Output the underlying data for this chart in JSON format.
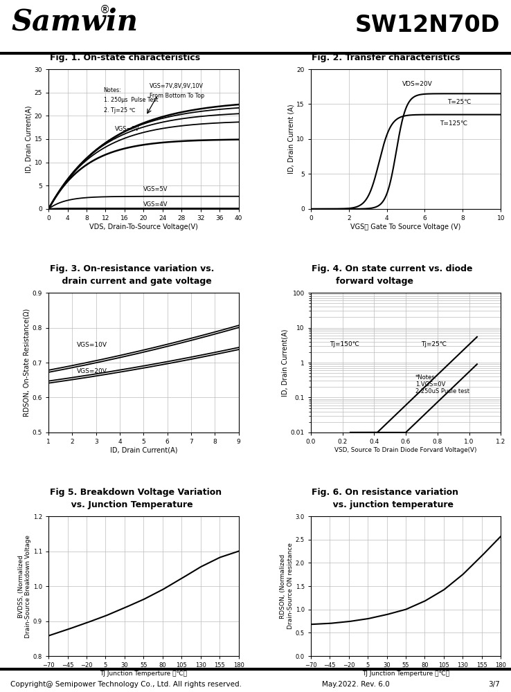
{
  "title_left": "Samwin",
  "title_right": "SW12N70D",
  "footer_left": "Copyright@ Semipower Technology Co., Ltd. All rights reserved.",
  "footer_mid": "May.2022. Rev. 6.0",
  "footer_right": "3/7",
  "fig1_title": "Fig. 1. On-state characteristics",
  "fig1_xlabel": "VDS, Drain-To-Source Voltage(V)",
  "fig1_ylabel": "ID, Drain Current(A)",
  "fig1_xlim": [
    0,
    40
  ],
  "fig1_ylim": [
    0,
    30
  ],
  "fig1_xticks": [
    0,
    4,
    8,
    12,
    16,
    20,
    24,
    28,
    32,
    36,
    40
  ],
  "fig1_yticks": [
    0,
    5,
    10,
    15,
    20,
    25,
    30
  ],
  "fig2_title": "Fig. 2. Transfer characteristics",
  "fig2_xlabel": "VGS， Gate To Source Voltage (V)",
  "fig2_ylabel": "ID, Drain Current (A)",
  "fig2_xlim": [
    0,
    10
  ],
  "fig2_ylim": [
    0,
    20
  ],
  "fig2_xticks": [
    0,
    2,
    4,
    6,
    8,
    10
  ],
  "fig2_yticks": [
    0,
    5,
    10,
    15,
    20
  ],
  "fig3_title_l1": "Fig. 3. On-resistance variation vs.",
  "fig3_title_l2": "    drain current and gate voltage",
  "fig3_xlabel": "ID, Drain Current(A)",
  "fig3_ylabel": "RDSON, On-State Resistance(Ω)",
  "fig3_xlim": [
    1,
    9
  ],
  "fig3_ylim": [
    0.5,
    0.9
  ],
  "fig3_xticks": [
    1,
    2,
    3,
    4,
    5,
    6,
    7,
    8,
    9
  ],
  "fig3_yticks": [
    0.5,
    0.6,
    0.7,
    0.8,
    0.9
  ],
  "fig4_title_l1": "Fig. 4. On state current vs. diode",
  "fig4_title_l2": "        forward voltage",
  "fig4_xlabel": "VSD, Source To Drain Diode Forvard Voltage(V)",
  "fig4_ylabel": "ID, Drain Current(A)",
  "fig4_xlim": [
    0.0,
    1.2
  ],
  "fig4_ylim_log": [
    0.01,
    100
  ],
  "fig4_xticks": [
    0.0,
    0.2,
    0.4,
    0.6,
    0.8,
    1.0,
    1.2
  ],
  "fig5_title_l1": "Fig 5. Breakdown Voltage Variation",
  "fig5_title_l2": "       vs. Junction Temperature",
  "fig5_xlabel": "TJ Junction Temperture （℃）",
  "fig5_ylabel": "BVDSS, (Normalized\nDrain-Source Breakdown Voltage",
  "fig5_xlim": [
    -70,
    180
  ],
  "fig5_ylim": [
    0.8,
    1.2
  ],
  "fig5_xticks": [
    -70,
    -45,
    -20,
    5,
    30,
    55,
    80,
    105,
    130,
    155,
    180
  ],
  "fig5_yticks": [
    0.8,
    0.9,
    1.0,
    1.1,
    1.2
  ],
  "fig6_title_l1": "Fig. 6. On resistance variation",
  "fig6_title_l2": "       vs. junction temperature",
  "fig6_xlabel": "TJ Junction Temperture （℃）",
  "fig6_ylabel": "RDSON, (Normalized\nDrain-Source ON resistance",
  "fig6_xlim": [
    -70,
    180
  ],
  "fig6_ylim": [
    0.0,
    3.0
  ],
  "fig6_xticks": [
    -70,
    -45,
    -20,
    5,
    30,
    55,
    80,
    105,
    130,
    155,
    180
  ],
  "fig6_yticks": [
    0.0,
    0.5,
    1.0,
    1.5,
    2.0,
    2.5,
    3.0
  ],
  "bg_color": "#ffffff",
  "grid_color": "#bbbbbb",
  "line_color": "#000000"
}
